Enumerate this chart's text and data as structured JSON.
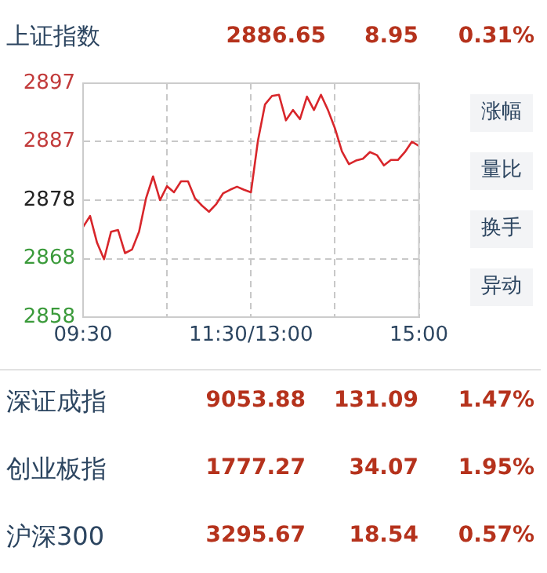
{
  "chart_data": {
    "type": "line",
    "title": "上证指数",
    "annotations": [
      "2886.65",
      "8.95",
      "0.31%",
      "涨幅",
      "量比",
      "换手",
      "异动",
      "深证成指",
      "9053.88",
      "131.09",
      "1.47%",
      "创业板指",
      "1777.27",
      "34.07",
      "1.95%",
      "沪深300",
      "3295.67",
      "18.54",
      "0.57%"
    ],
    "categories": [
      "09:30",
      null,
      null,
      null,
      null,
      null,
      null,
      null,
      null,
      null,
      null,
      null,
      null,
      null,
      null,
      null,
      null,
      null,
      null,
      null,
      null,
      null,
      null,
      null,
      "11:30/13:00",
      null,
      null,
      null,
      null,
      null,
      null,
      null,
      null,
      null,
      null,
      null,
      null,
      null,
      null,
      null,
      null,
      null,
      null,
      null,
      null,
      null,
      null,
      null,
      "15:00"
    ],
    "series": [
      {
        "color": "#d8262b",
        "values": [
          2873.3,
          2875.1,
          2870.7,
          2868.0,
          2872.5,
          2872.8,
          2869.0,
          2869.6,
          2872.5,
          2878.0,
          2881.6,
          2877.7,
          2880.0,
          2879.0,
          2880.8,
          2880.8,
          2878.0,
          2876.8,
          2875.8,
          2877.0,
          2878.8,
          2879.4,
          2879.9,
          2879.4,
          2879.0,
          2887.5,
          2893.4,
          2894.8,
          2895.0,
          2890.8,
          2892.5,
          2891.0,
          2894.7,
          2892.5,
          2895.0,
          2892.5,
          2889.5,
          2885.7,
          2883.6,
          2884.2,
          2884.5,
          2885.6,
          2885.1,
          2883.4,
          2884.3,
          2884.3,
          2885.6,
          2887.3,
          2886.6
        ]
      }
    ],
    "ylim": [
      2858.5,
      2896.9
    ],
    "yticks": [
      {
        "value": 2858.5,
        "label": "2858"
      },
      {
        "value": 2868.1,
        "label": "2868"
      },
      {
        "value": 2877.7,
        "label": "2878"
      },
      {
        "value": 2887.3,
        "label": "2887"
      },
      {
        "value": 2896.9,
        "label": "2897"
      }
    ],
    "grid": true,
    "legend": false,
    "marker": "none",
    "line_style": "solid"
  }
}
